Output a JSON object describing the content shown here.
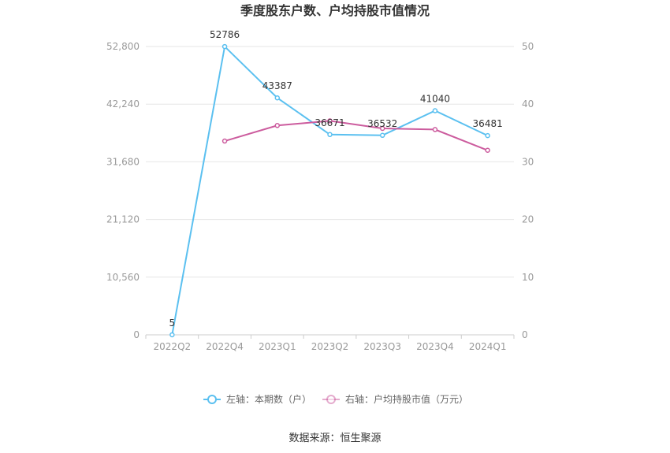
{
  "chart_data": {
    "type": "line",
    "title": "季度股东户数、户均持股市值情况",
    "categories": [
      "2022Q2",
      "2022Q4",
      "2023Q1",
      "2023Q2",
      "2023Q3",
      "2023Q4",
      "2024Q1"
    ],
    "series": [
      {
        "name": "左轴：本期数（户）",
        "axis": "left",
        "color": "#5bc0f0",
        "values": [
          5,
          52786,
          43387,
          36671,
          36532,
          41040,
          36481
        ],
        "labels": [
          "5",
          "52786",
          "43387",
          "36671",
          "36532",
          "41040",
          "36481"
        ]
      },
      {
        "name": "右轴：户均持股市值（万元）",
        "axis": "right",
        "color": "#cc5c9e",
        "values": [
          null,
          33.6,
          36.3,
          37.1,
          35.8,
          35.6,
          32.0
        ]
      }
    ],
    "left_axis": {
      "min": 0,
      "max": 52800,
      "ticks": [
        0,
        10560,
        21120,
        31680,
        42240,
        52800
      ],
      "tick_labels": [
        "0",
        "10,560",
        "21,120",
        "31,680",
        "42,240",
        "52,800"
      ]
    },
    "right_axis": {
      "min": 0,
      "max": 50,
      "ticks": [
        0,
        10,
        20,
        30,
        40,
        50
      ],
      "tick_labels": [
        "0",
        "10",
        "20",
        "30",
        "40",
        "50"
      ]
    },
    "grid": true,
    "legend_position": "bottom-center"
  },
  "source_text": "数据来源：恒生聚源"
}
